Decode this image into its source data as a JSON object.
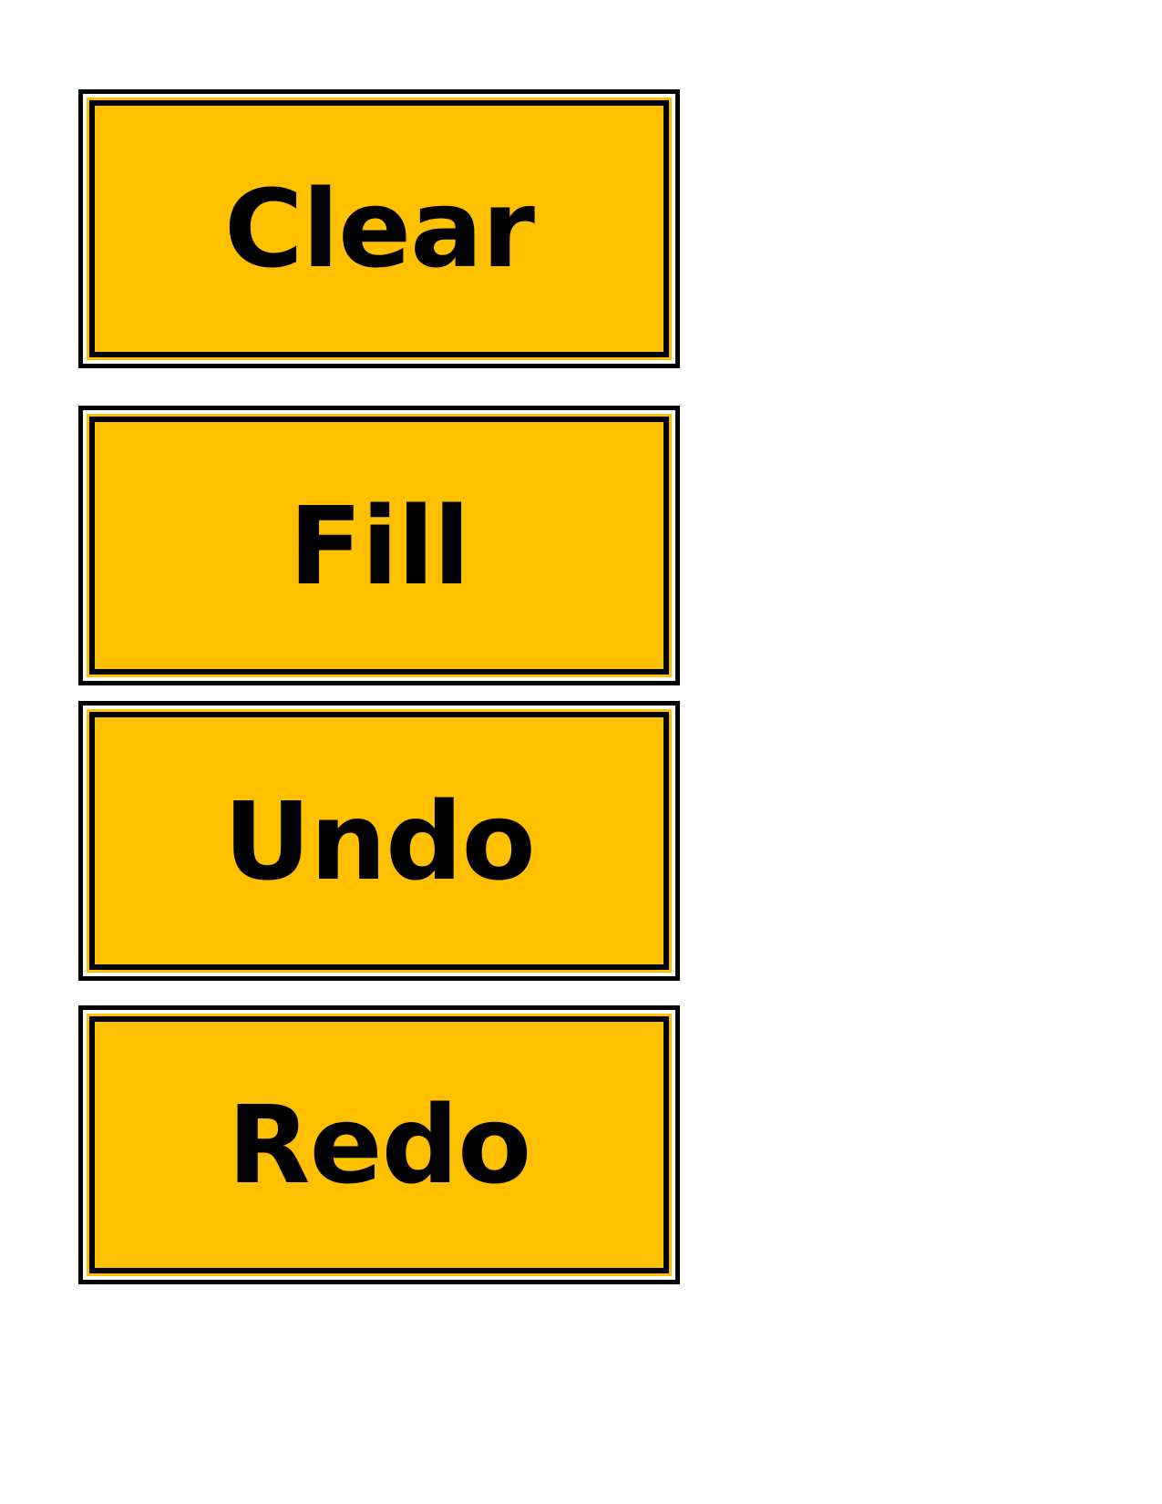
{
  "colors": {
    "card_fill": "#FFC000",
    "frame": "#000000",
    "background": "#FFFFFF"
  },
  "cards": [
    {
      "label": "Clear"
    },
    {
      "label": "Fill"
    },
    {
      "label": "Undo"
    },
    {
      "label": "Redo"
    }
  ]
}
